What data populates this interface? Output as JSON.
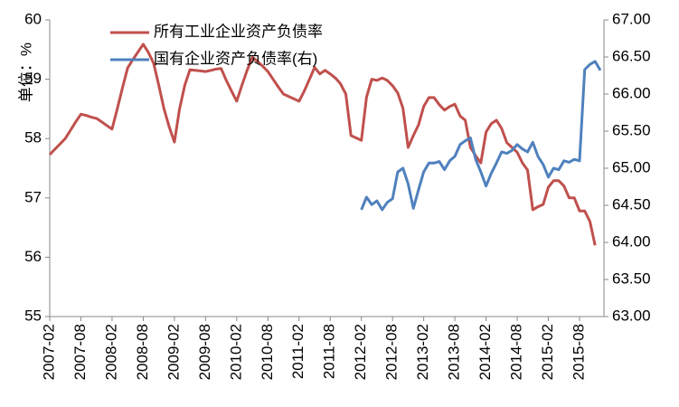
{
  "chart_data": {
    "type": "line",
    "y_label": "单位：%",
    "categories": [
      "2007-02",
      null,
      null,
      null,
      null,
      null,
      "2007-08",
      null,
      null,
      null,
      null,
      null,
      "2008-02",
      null,
      null,
      null,
      null,
      null,
      "2008-08",
      null,
      null,
      null,
      null,
      null,
      "2009-02",
      null,
      null,
      null,
      null,
      null,
      "2009-08",
      null,
      null,
      null,
      null,
      null,
      "2010-02",
      null,
      null,
      null,
      null,
      null,
      "2010-08",
      null,
      null,
      null,
      null,
      null,
      "2011-02",
      null,
      null,
      null,
      null,
      null,
      "2011-08",
      null,
      null,
      null,
      null,
      null,
      "2012-02",
      null,
      null,
      null,
      null,
      null,
      "2012-08",
      null,
      null,
      null,
      null,
      null,
      "2013-02",
      null,
      null,
      null,
      null,
      null,
      "2013-08",
      null,
      null,
      null,
      null,
      null,
      "2014-02",
      null,
      null,
      null,
      null,
      null,
      "2014-08",
      null,
      null,
      null,
      null,
      null,
      "2015-02",
      null,
      null,
      null,
      null,
      null,
      "2015-08",
      null,
      null,
      null,
      null
    ],
    "series": [
      {
        "name": "所有工业企业资产负债率",
        "color": "#c0504d",
        "axis": "y",
        "values": [
          57.73,
          57.82,
          57.91,
          58.0,
          58.14,
          58.28,
          58.41,
          58.39,
          58.36,
          58.34,
          58.28,
          58.22,
          58.16,
          58.5,
          58.85,
          59.19,
          59.33,
          59.46,
          59.59,
          59.45,
          59.27,
          58.9,
          58.5,
          58.2,
          57.94,
          58.5,
          58.9,
          59.16,
          59.15,
          59.14,
          59.13,
          59.15,
          59.17,
          59.18,
          58.98,
          58.8,
          58.63,
          58.9,
          59.15,
          59.37,
          59.3,
          59.22,
          59.13,
          59.0,
          58.87,
          58.75,
          58.71,
          58.67,
          58.63,
          58.8,
          59.0,
          59.2,
          59.09,
          59.15,
          59.09,
          59.02,
          58.92,
          58.75,
          58.05,
          58.01,
          57.97,
          58.7,
          59.0,
          58.98,
          59.02,
          58.98,
          58.89,
          58.77,
          58.51,
          57.85,
          58.05,
          58.23,
          58.54,
          58.69,
          58.69,
          58.57,
          58.48,
          58.54,
          58.58,
          58.38,
          58.31,
          57.85,
          57.71,
          57.59,
          58.11,
          58.25,
          58.31,
          58.17,
          57.93,
          57.85,
          57.77,
          57.59,
          57.47,
          56.8,
          56.85,
          56.89,
          57.18,
          57.29,
          57.29,
          57.2,
          57.0,
          57.0,
          56.78,
          56.78,
          56.6,
          56.2,
          null
        ]
      },
      {
        "name": "国有企业资产负债率(右)",
        "color": "#4f81bd",
        "axis": "y2",
        "values": [
          null,
          null,
          null,
          null,
          null,
          null,
          null,
          null,
          null,
          null,
          null,
          null,
          null,
          null,
          null,
          null,
          null,
          null,
          null,
          null,
          null,
          null,
          null,
          null,
          null,
          null,
          null,
          null,
          null,
          null,
          null,
          null,
          null,
          null,
          null,
          null,
          null,
          null,
          null,
          null,
          null,
          null,
          null,
          null,
          null,
          null,
          null,
          null,
          null,
          null,
          null,
          null,
          null,
          null,
          null,
          null,
          null,
          null,
          null,
          null,
          64.44,
          64.61,
          64.51,
          64.56,
          64.44,
          64.54,
          64.59,
          64.95,
          65.0,
          64.79,
          64.46,
          64.71,
          64.95,
          65.07,
          65.07,
          65.09,
          64.98,
          65.1,
          65.16,
          65.32,
          65.37,
          65.41,
          65.12,
          64.95,
          64.76,
          64.93,
          65.07,
          65.22,
          65.2,
          65.24,
          65.32,
          65.26,
          65.22,
          65.35,
          65.16,
          65.05,
          64.88,
          65.0,
          64.98,
          65.1,
          65.08,
          65.12,
          65.1,
          66.33,
          66.4,
          66.44,
          66.32
        ]
      }
    ],
    "ylim": [
      55,
      60
    ],
    "yticks": [
      55,
      56,
      57,
      58,
      59,
      60
    ],
    "y2lim": [
      63,
      67
    ],
    "y2ticks": [
      {
        "value": 63,
        "label": "63.00"
      },
      {
        "value": 63.5,
        "label": "63.50"
      },
      {
        "value": 64,
        "label": "64.00"
      },
      {
        "value": 64.5,
        "label": "64.50"
      },
      {
        "value": 65,
        "label": "65.00"
      },
      {
        "value": 65.5,
        "label": "65.50"
      },
      {
        "value": 66,
        "label": "66.00"
      },
      {
        "value": 66.5,
        "label": "66.50"
      },
      {
        "value": 67,
        "label": "67.00"
      }
    ],
    "grid": false,
    "legend": "upper left"
  }
}
